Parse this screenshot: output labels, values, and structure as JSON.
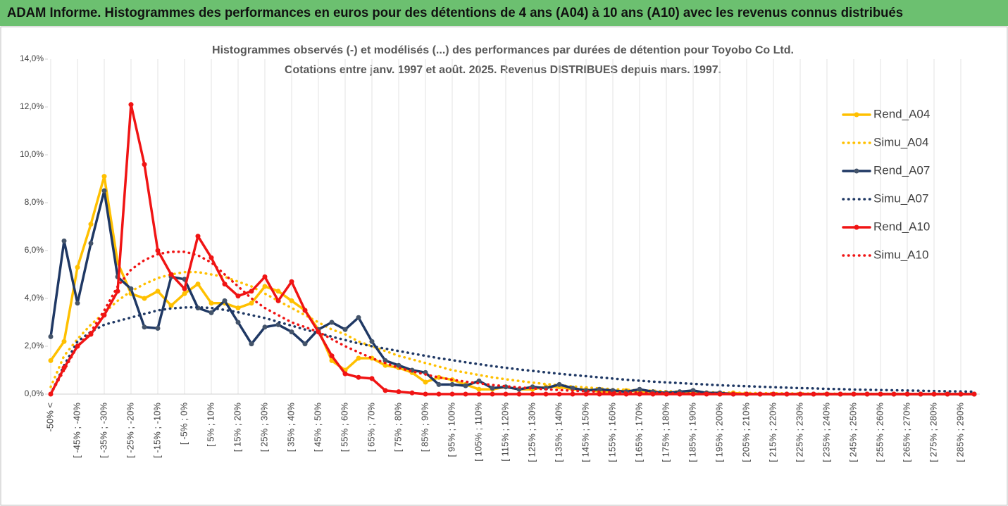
{
  "header": {
    "title": "ADAM Informe. Histogrammes des performances en euros pour des détentions de 4 ans (A04) à 10 ans (A10) avec les revenus connus distribués"
  },
  "chart_data": {
    "type": "line",
    "title": [
      "Histogrammes observés (-) et modélisés (...) des performances par durées de détention pour Toyobo Co Ltd.",
      "Cotations entre janv. 1997 et août. 2025. Revenus DISTRIBUES depuis mars. 1997."
    ],
    "categories": [
      "-50% <",
      null,
      "[ -45% ; -40%",
      null,
      "[ -35% ; -30%",
      null,
      "[ -25% ; -20%",
      null,
      "[ -15% ; -10%",
      null,
      "[ -5% ; 0%",
      null,
      "[ 5% ; 10%",
      null,
      "[ 15% ; 20%",
      null,
      "[ 25% ; 30%",
      null,
      "[ 35% ; 40%",
      null,
      "[ 45% ; 50%",
      null,
      "[ 55% ; 60%",
      null,
      "[ 65% ; 70%",
      null,
      "[ 75% ; 80%",
      null,
      "[ 85% ; 90%",
      null,
      "[ 95% ; 100%",
      null,
      "[ 105% ; 110%",
      null,
      "[ 115% ; 120%",
      null,
      "[ 125% ; 130%",
      null,
      "[ 135% ; 140%",
      null,
      "[ 145% ; 150%",
      null,
      "[ 155% ; 160%",
      null,
      "[ 165% ; 170%",
      null,
      "[ 175% ; 180%",
      null,
      "[ 185% ; 190%",
      null,
      "[ 195% ; 200%",
      null,
      "[ 205% ; 210%",
      null,
      "[ 215% ; 220%",
      null,
      "[ 225% ; 230%",
      null,
      "[ 235% ; 240%",
      null,
      "[ 245% ; 250%",
      null,
      "[ 255% ; 260%",
      null,
      "[ 265% ; 270%",
      null,
      "[ 275% ; 280%",
      null,
      "[ 285% ; 290%",
      null
    ],
    "series": [
      {
        "name": "Rend_A04",
        "color": "#FFC000",
        "style": "solid",
        "markers": true,
        "values": [
          1.4,
          2.2,
          5.3,
          7.1,
          9.1,
          5.5,
          4.2,
          4.0,
          4.3,
          3.7,
          4.2,
          4.6,
          3.8,
          3.8,
          3.6,
          3.8,
          4.5,
          4.3,
          3.9,
          3.5,
          2.7,
          1.4,
          1.0,
          1.5,
          1.5,
          1.2,
          1.1,
          0.9,
          0.5,
          0.7,
          0.6,
          0.4,
          0.2,
          0.2,
          0.3,
          0.2,
          0.2,
          0.3,
          0.3,
          0.2,
          0.2,
          0.1,
          0.1,
          0.15,
          0.1,
          0.1,
          0.05,
          0.05,
          0.1,
          0.05,
          0,
          0.05,
          0,
          0,
          0,
          0,
          0,
          0,
          0,
          0,
          0,
          0,
          0,
          0,
          0,
          0,
          0,
          0,
          0,
          0
        ]
      },
      {
        "name": "Simu_A04",
        "color": "#FFC000",
        "style": "dotted",
        "markers": false,
        "values": [
          0.3,
          1.6,
          2.3,
          2.9,
          3.4,
          3.9,
          4.3,
          4.6,
          4.85,
          5.0,
          5.1,
          5.1,
          5.0,
          4.9,
          4.7,
          4.5,
          4.2,
          3.9,
          3.6,
          3.3,
          3.0,
          2.7,
          2.5,
          2.2,
          2.0,
          1.8,
          1.6,
          1.45,
          1.3,
          1.15,
          1.0,
          0.9,
          0.8,
          0.7,
          0.62,
          0.55,
          0.48,
          0.42,
          0.37,
          0.32,
          0.28,
          0.24,
          0.21,
          0.18,
          0.16,
          0.14,
          0.12,
          0.1,
          0.09,
          0.08,
          0.07,
          0.06,
          0.05,
          0.04,
          0.04,
          0.03,
          0.03,
          0.02,
          0.02,
          0.02,
          0.01,
          0.01,
          0.01,
          0.01,
          0.01,
          0,
          0,
          0,
          0,
          0
        ]
      },
      {
        "name": "Rend_A07",
        "color": "#1F3864",
        "style": "solid",
        "markers": true,
        "values": [
          2.4,
          6.4,
          3.8,
          6.3,
          8.5,
          4.9,
          4.4,
          2.8,
          2.75,
          4.9,
          4.8,
          3.6,
          3.4,
          3.9,
          3.0,
          2.1,
          2.8,
          2.9,
          2.6,
          2.1,
          2.7,
          3.0,
          2.7,
          3.2,
          2.2,
          1.4,
          1.2,
          1.0,
          0.9,
          0.4,
          0.4,
          0.35,
          0.55,
          0.25,
          0.3,
          0.2,
          0.3,
          0.25,
          0.4,
          0.25,
          0.15,
          0.2,
          0.15,
          0.1,
          0.2,
          0.1,
          0.05,
          0.1,
          0.15,
          0.05,
          0.05,
          0,
          0,
          0,
          0,
          0,
          0,
          0,
          0,
          0,
          0,
          0,
          0,
          0,
          0,
          0,
          0,
          0,
          0,
          0
        ]
      },
      {
        "name": "Simu_A07",
        "color": "#1F3864",
        "style": "dotted",
        "markers": false,
        "values": [
          0,
          1.2,
          2.2,
          2.6,
          2.9,
          3.05,
          3.2,
          3.35,
          3.5,
          3.58,
          3.62,
          3.63,
          3.6,
          3.52,
          3.42,
          3.3,
          3.18,
          3.02,
          2.86,
          2.7,
          2.55,
          2.4,
          2.26,
          2.12,
          2.0,
          1.9,
          1.8,
          1.7,
          1.6,
          1.5,
          1.42,
          1.33,
          1.25,
          1.17,
          1.1,
          1.03,
          0.97,
          0.91,
          0.85,
          0.8,
          0.75,
          0.7,
          0.65,
          0.6,
          0.56,
          0.52,
          0.49,
          0.46,
          0.43,
          0.4,
          0.37,
          0.35,
          0.33,
          0.31,
          0.29,
          0.27,
          0.25,
          0.24,
          0.22,
          0.21,
          0.19,
          0.18,
          0.17,
          0.16,
          0.15,
          0.14,
          0.13,
          0.12,
          0.11,
          0.1
        ]
      },
      {
        "name": "Rend_A10",
        "color": "#F01414",
        "style": "solid",
        "markers": true,
        "values": [
          0,
          1.1,
          2.0,
          2.5,
          3.3,
          4.3,
          12.1,
          9.6,
          6.0,
          5.0,
          4.4,
          6.6,
          5.7,
          4.6,
          4.1,
          4.3,
          4.9,
          3.9,
          4.7,
          3.5,
          2.6,
          1.6,
          0.85,
          0.7,
          0.65,
          0.15,
          0.1,
          0.05,
          0,
          0,
          0,
          0,
          0,
          0,
          0,
          0,
          0,
          0,
          0,
          0,
          0,
          0,
          0,
          0,
          0,
          0,
          0,
          0,
          0,
          0,
          0,
          0,
          0,
          0,
          0,
          0,
          0,
          0,
          0,
          0,
          0,
          0,
          0,
          0,
          0,
          0,
          0,
          0,
          0,
          0
        ]
      },
      {
        "name": "Simu_A10",
        "color": "#F01414",
        "style": "dotted",
        "markers": false,
        "values": [
          0,
          1.0,
          2.0,
          2.6,
          3.5,
          4.5,
          5.2,
          5.6,
          5.85,
          5.95,
          5.95,
          5.8,
          5.5,
          5.0,
          4.5,
          4.0,
          3.6,
          3.3,
          3.0,
          2.8,
          2.6,
          2.3,
          2.0,
          1.75,
          1.5,
          1.3,
          1.1,
          0.95,
          0.82,
          0.7,
          0.6,
          0.52,
          0.45,
          0.38,
          0.33,
          0.28,
          0.24,
          0.2,
          0.17,
          0.14,
          0.12,
          0.1,
          0.08,
          0.07,
          0.06,
          0.05,
          0.04,
          0.03,
          0.03,
          0.02,
          0.02,
          0.01,
          0.01,
          0.01,
          0.01,
          0,
          0,
          0,
          0,
          0,
          0,
          0,
          0,
          0,
          0,
          0,
          0,
          0,
          0,
          0
        ]
      }
    ],
    "ylim": [
      0,
      14
    ],
    "yticks": [
      {
        "value": 0,
        "label": "0,0%"
      },
      {
        "value": 2,
        "label": "2,0%"
      },
      {
        "value": 4,
        "label": "4,0%"
      },
      {
        "value": 6,
        "label": "6,0%"
      },
      {
        "value": 8,
        "label": "8,0%"
      },
      {
        "value": 10,
        "label": "10,0%"
      },
      {
        "value": 12,
        "label": "12,0%"
      },
      {
        "value": 14,
        "label": "14,0%"
      }
    ],
    "grid": true,
    "legend": "right"
  }
}
